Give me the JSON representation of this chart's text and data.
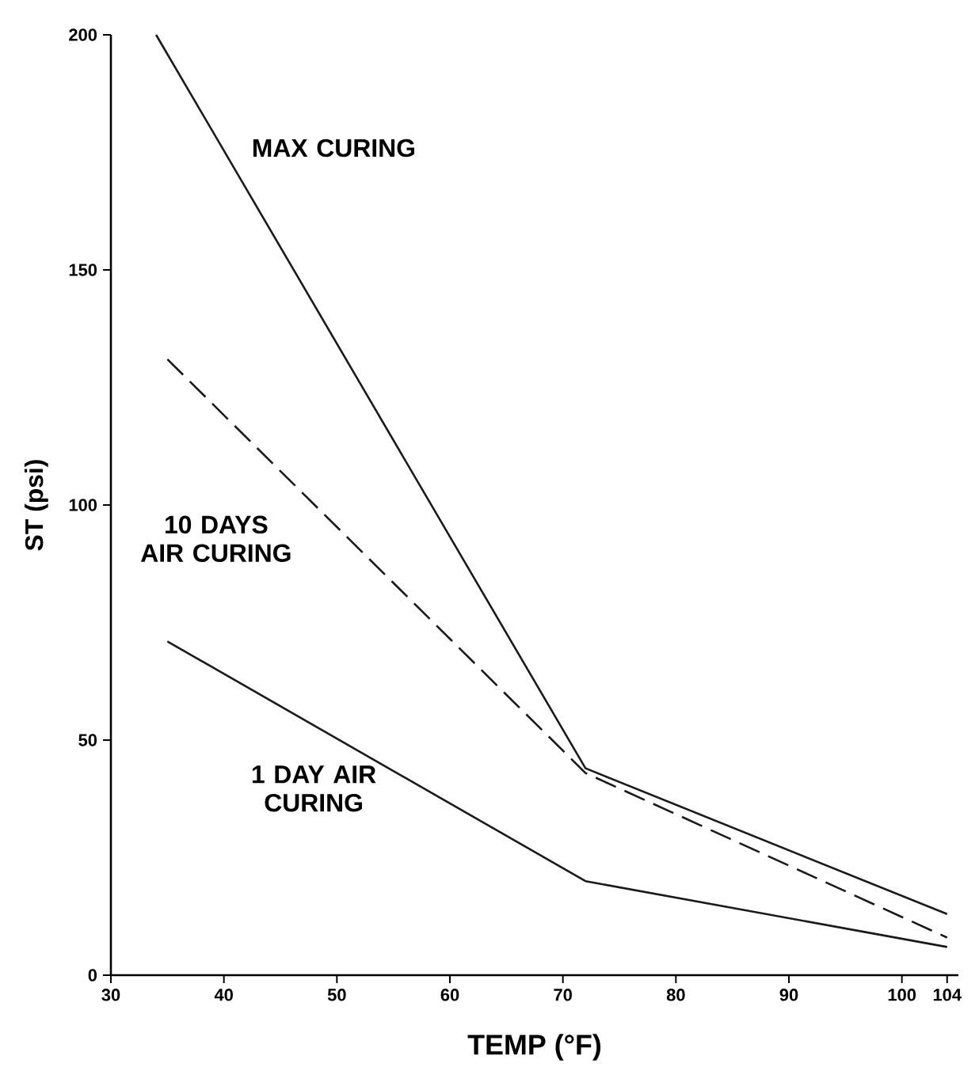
{
  "chart_data": {
    "type": "line",
    "xlabel": "TEMP (°F)",
    "ylabel": "ST (psi)",
    "xlim": [
      30,
      105
    ],
    "ylim": [
      0,
      200
    ],
    "xticks": [
      30,
      40,
      50,
      60,
      70,
      80,
      90,
      100,
      104
    ],
    "yticks": [
      0,
      50,
      100,
      150,
      200
    ],
    "grid": false,
    "legend": false,
    "marker": "none",
    "series": [
      {
        "name": "MAX CURING",
        "color": "#1a1a1a",
        "line_style": "solid",
        "x": [
          34,
          72,
          104
        ],
        "values": [
          200,
          44,
          13
        ]
      },
      {
        "name": "10 DAYS AIR CURING",
        "color": "#1a1a1a",
        "line_style": "dashed",
        "x": [
          35,
          72,
          104
        ],
        "values": [
          131,
          43,
          8
        ]
      },
      {
        "name": "1 DAY AIR CURING",
        "color": "#1a1a1a",
        "line_style": "solid",
        "x": [
          35,
          72,
          104
        ],
        "values": [
          71,
          20,
          6
        ]
      }
    ]
  }
}
